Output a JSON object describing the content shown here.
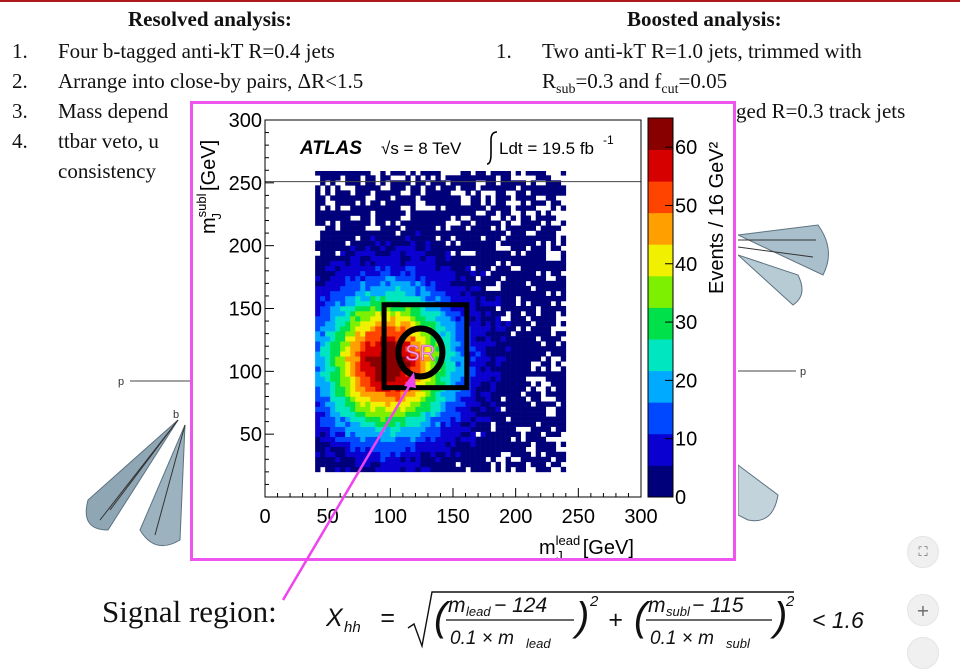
{
  "left": {
    "title": "Resolved analysis:",
    "items": [
      {
        "num": "1.",
        "text": "Four b-tagged anti-kT R=0.4 jets"
      },
      {
        "num": "2.",
        "text": "Arrange into close-by pairs, ΔR<1.5"
      },
      {
        "num": "3.",
        "text": "Mass depend"
      },
      {
        "num": "4.",
        "text": "ttbar veto, u"
      }
    ],
    "item4_cont": "consistency"
  },
  "right": {
    "title": "Boosted analysis:",
    "items": [
      {
        "num": "1.",
        "text": "Two anti-kT R=1.0 jets, trimmed with"
      }
    ],
    "line2": "R_sub=0.3 and f_cut=0.05",
    "line3_visible": "ged R=0.3 track jets"
  },
  "diagram": {
    "p_left": "p",
    "b_left": "b",
    "p_right": "p"
  },
  "chart_data": {
    "type": "heatmap",
    "banner_experiment": "ATLAS",
    "banner_energy": "√s = 8 TeV",
    "banner_lumi": "Ldt = 19.5 fb",
    "banner_lumi_exp": "-1",
    "xlabel": "m_J^lead [GeV]",
    "ylabel": "m_J^subl [GeV]",
    "zlabel": "Events / 16 GeV²",
    "xlim": [
      0,
      300
    ],
    "ylim": [
      0,
      300
    ],
    "zlim": [
      0,
      65
    ],
    "xticks": [
      "0",
      "50",
      "100",
      "150",
      "200",
      "250",
      "300"
    ],
    "yticks": [
      "50",
      "100",
      "150",
      "200",
      "250",
      "300"
    ],
    "zticks": [
      "0",
      "10",
      "20",
      "30",
      "40",
      "50",
      "60"
    ],
    "peak": {
      "x": 95,
      "y": 105,
      "max": 62
    },
    "bin_width": 4,
    "sr_label": "SR",
    "sr_center": [
      124,
      115
    ],
    "control_box": {
      "x0": 95,
      "x1": 161,
      "y0": 87,
      "y1": 153
    },
    "colors": [
      "#00007a",
      "#0a00d0",
      "#0048ff",
      "#00aaff",
      "#00e6c0",
      "#00e04a",
      "#7cf000",
      "#f0f000",
      "#ffa000",
      "#ff4400",
      "#d60000",
      "#880000"
    ]
  },
  "signal": {
    "label": "Signal region:",
    "formula_lhs": "X",
    "formula_sub": "hh",
    "num1": "m",
    "num1_sub": "lead",
    "num1_rest": " − 124",
    "den1": "0.1 × m",
    "den1_sub": "lead",
    "num2": "m",
    "num2_sub": "subl",
    "num2_rest": " − 115",
    "den2": "0.1 × m",
    "den2_sub": "subl",
    "rhs": "< 1.6",
    "exp": "2"
  },
  "controls": {
    "fit_icon": "⛶",
    "zoom_in": "+"
  }
}
